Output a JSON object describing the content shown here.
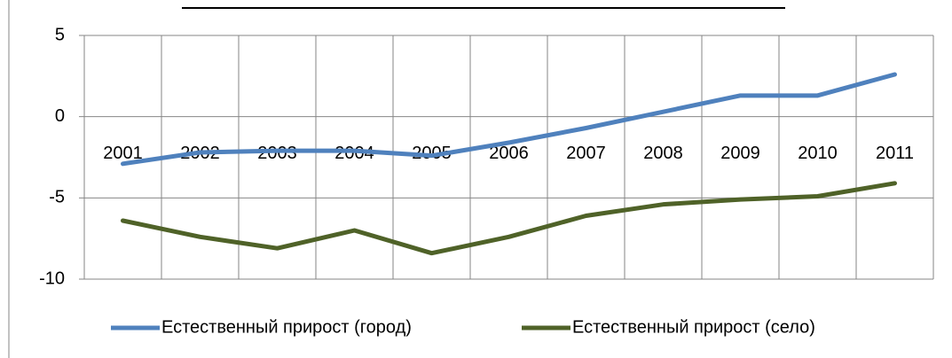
{
  "chart_data": {
    "type": "line",
    "categories": [
      "2001",
      "2002",
      "2003",
      "2004",
      "2005",
      "2006",
      "2007",
      "2008",
      "2009",
      "2010",
      "2011"
    ],
    "series": [
      {
        "name": "Естественный прирост (город)",
        "color": "#4f81bd",
        "values": [
          -2.9,
          -2.2,
          -2.1,
          -2.1,
          -2.4,
          -1.6,
          -0.7,
          0.3,
          1.3,
          1.3,
          2.6
        ]
      },
      {
        "name": "Естественный прирост (село)",
        "color": "#4f6228",
        "values": [
          -6.4,
          -7.4,
          -8.1,
          -7.0,
          -8.4,
          -7.4,
          -6.1,
          -5.4,
          -5.1,
          -4.9,
          -4.1
        ]
      }
    ],
    "ylim": [
      -10,
      5
    ],
    "yticks": [
      -10,
      -5,
      0,
      5
    ],
    "grid": true,
    "legend": "bottom"
  }
}
